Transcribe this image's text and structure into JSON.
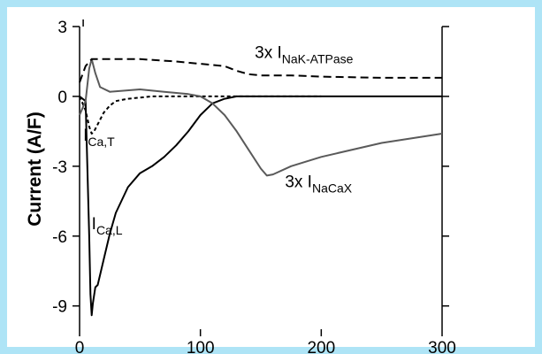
{
  "chart_data": {
    "type": "line",
    "title": "",
    "xlabel": "",
    "ylabel": "Current (A/F)",
    "xlim": [
      0,
      300
    ],
    "ylim": [
      -10,
      3
    ],
    "xticks": [
      0,
      100,
      200,
      300
    ],
    "yticks": [
      3,
      0,
      -3,
      -6,
      -9
    ],
    "xtick_labels": [
      "0",
      "100",
      "200",
      "300"
    ],
    "ytick_labels": [
      "3",
      "0",
      "-3",
      "-6",
      "-9"
    ],
    "grid": false,
    "legend": "none",
    "series": [
      {
        "label_prefix": "I",
        "label_sub": "Ca,L",
        "style": "solid",
        "color": "#000000",
        "x": [
          0,
          5,
          8,
          9,
          10,
          11,
          13,
          15,
          20,
          25,
          30,
          40,
          50,
          60,
          70,
          80,
          90,
          100,
          110,
          120,
          130,
          140,
          150,
          175,
          200,
          250,
          300
        ],
        "y": [
          0,
          -0.2,
          -6.0,
          -8.5,
          -9.4,
          -8.9,
          -8.2,
          -8.1,
          -7.0,
          -5.9,
          -5.0,
          -3.9,
          -3.3,
          -3.0,
          -2.6,
          -2.1,
          -1.5,
          -0.8,
          -0.3,
          -0.1,
          0,
          0,
          0,
          0,
          0,
          0,
          0
        ]
      },
      {
        "label_prefix": "I",
        "label_sub": "Ca,T",
        "style": "dotted",
        "color": "#000000",
        "x": [
          0,
          5,
          8,
          10,
          12,
          15,
          20,
          25,
          30,
          40,
          60,
          80,
          100,
          150,
          200
        ],
        "y": [
          0,
          -0.6,
          -1.3,
          -1.6,
          -1.5,
          -1.2,
          -0.7,
          -0.4,
          -0.2,
          -0.1,
          0,
          0,
          0,
          0,
          0
        ]
      },
      {
        "label_prefix": "3x I",
        "label_sub": "NaCaX",
        "style": "solid",
        "color": "#5a5a5a",
        "x": [
          0,
          5,
          8,
          10,
          13,
          17,
          25,
          50,
          70,
          90,
          100,
          110,
          120,
          130,
          140,
          150,
          155,
          160,
          175,
          200,
          250,
          300
        ],
        "y": [
          -0.8,
          -0.2,
          1.2,
          1.6,
          1.0,
          0.4,
          0.2,
          0.3,
          0.2,
          0.1,
          0,
          -0.3,
          -0.8,
          -1.5,
          -2.3,
          -3.1,
          -3.4,
          -3.35,
          -3.0,
          -2.6,
          -2.0,
          -1.6
        ]
      },
      {
        "label_prefix": "3x I",
        "label_sub": "NaK-ATPase",
        "style": "dashed",
        "color": "#000000",
        "x": [
          0,
          5,
          10,
          20,
          50,
          80,
          100,
          120,
          130,
          140,
          150,
          160,
          175,
          200,
          250,
          300
        ],
        "y": [
          0.6,
          1.3,
          1.6,
          1.6,
          1.6,
          1.5,
          1.4,
          1.3,
          1.1,
          0.95,
          0.9,
          0.9,
          0.9,
          0.85,
          0.8,
          0.8
        ]
      }
    ]
  },
  "colors": {
    "frame": "#aee4f6",
    "axis": "#000000",
    "zero_line": "#000000"
  }
}
